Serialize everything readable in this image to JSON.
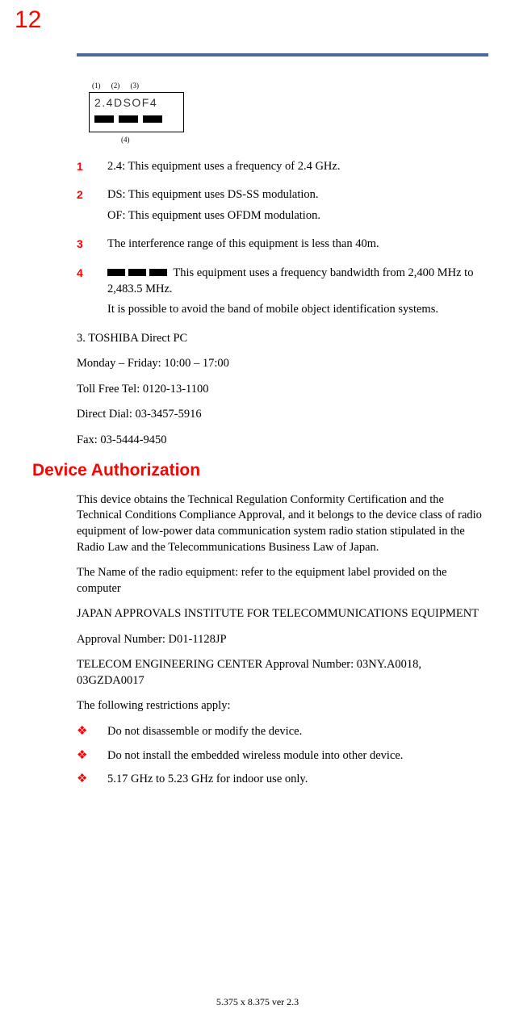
{
  "page_number": "12",
  "diagram": {
    "top_labels": [
      "(1)",
      "(2)",
      "(3)"
    ],
    "box_text": "2.4DSOF4",
    "bottom_label": "(4)"
  },
  "numbered": [
    {
      "n": "1",
      "lines": [
        "2.4: This equipment uses a frequency of 2.4 GHz."
      ]
    },
    {
      "n": "2",
      "lines": [
        "DS: This equipment uses DS-SS modulation.",
        "OF: This equipment uses OFDM modulation."
      ]
    },
    {
      "n": "3",
      "lines": [
        "The interference range of this equipment is less than 40m."
      ]
    },
    {
      "n": "4",
      "bars_prefix": true,
      "lines": [
        "This equipment uses a frequency bandwidth from 2,400 MHz to 2,483.5 MHz.",
        "It is possible to avoid the band of mobile object identification systems."
      ]
    }
  ],
  "after_numbered": [
    "3. TOSHIBA Direct PC",
    "Monday – Friday: 10:00 – 17:00",
    "Toll Free Tel: 0120-13-1100",
    "Direct Dial: 03-3457-5916",
    "Fax: 03-5444-9450"
  ],
  "heading": "Device Authorization",
  "body": [
    "This device obtains the Technical Regulation Conformity Certification and the Technical Conditions Compliance Approval, and it belongs to the device class of radio equipment of low-power data communication system radio station stipulated in the Radio Law and the Telecommunications Business Law of Japan.",
    "The Name of the radio equipment: refer to the equipment label provided on the computer",
    "JAPAN APPROVALS INSTITUTE FOR TELECOMMUNICATIONS EQUIPMENT",
    "Approval Number: D01-1128JP",
    "TELECOM ENGINEERING CENTER Approval Number: 03NY.A0018, 03GZDA0017",
    "The following restrictions apply:"
  ],
  "bullets": [
    "Do not disassemble or modify the device.",
    "Do not install the embedded wireless module into other device.",
    "5.17 GHz to 5.23 GHz for indoor use only."
  ],
  "footer": "5.375 x 8.375 ver 2.3",
  "colors": {
    "accent_red": "#ff0000",
    "rule_blue": "#4a6a9a",
    "text": "#000000",
    "background": "#ffffff"
  },
  "typography": {
    "body_font": "Times New Roman",
    "heading_font": "Arial",
    "body_size_pt": 11,
    "heading_size_pt": 16,
    "page_number_size_pt": 22
  }
}
